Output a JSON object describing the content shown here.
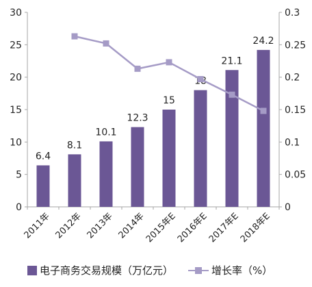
{
  "chart_data": {
    "type": "bar+line",
    "categories": [
      "2011年",
      "2012年",
      "2013年",
      "2014年",
      "2015年E",
      "2016年E",
      "2017年E",
      "2018年E"
    ],
    "series": [
      {
        "name": "电子商务交易规模（万亿元）",
        "type": "bar",
        "axis": "left",
        "values": [
          6.4,
          8.1,
          10.1,
          12.3,
          15,
          18,
          21.1,
          24.2
        ],
        "labels": [
          "6.4",
          "8.1",
          "10.1",
          "12.3",
          "15",
          "18",
          "21.1",
          "24.2"
        ],
        "color": "#6b5795"
      },
      {
        "name": "增长率（%）",
        "type": "line",
        "axis": "right",
        "values": [
          null,
          0.263,
          0.252,
          0.213,
          0.223,
          0.197,
          0.173,
          0.148
        ],
        "color": "#a59bc6"
      }
    ],
    "y_left": {
      "min": 0,
      "max": 30,
      "ticks": [
        "0",
        "5",
        "10",
        "15",
        "20",
        "25",
        "30"
      ]
    },
    "y_right": {
      "min": 0,
      "max": 0.3,
      "ticks": [
        "0",
        "0.05",
        "0.1",
        "0.15",
        "0.2",
        "0.25",
        "0.3"
      ]
    },
    "grid": false,
    "legend_position": "bottom"
  }
}
